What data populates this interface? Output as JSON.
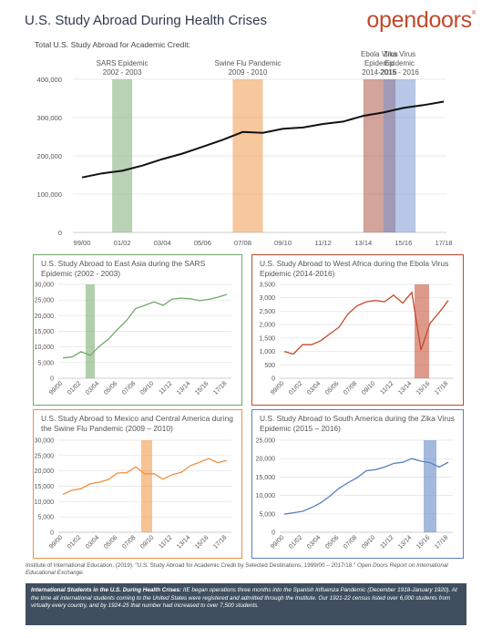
{
  "page": {
    "title": "U.S. Study Abroad During Health Crises",
    "logo": "opendoors",
    "logo_mark": "®",
    "subtitle": "Total U.S. Study Abroad for Academic Credit:"
  },
  "colors": {
    "sars": "#72a86a",
    "ebola": "#c2492b",
    "swine": "#f08f3d",
    "zika": "#5a7fc2",
    "main_line": "#111111"
  },
  "chart_data": [
    {
      "type": "line",
      "id": "main",
      "title": "",
      "xlabel": "",
      "ylabel": "",
      "ylim": [
        0,
        400000
      ],
      "yticks": [
        "0",
        "100,000",
        "200,000",
        "300,000",
        "400,000"
      ],
      "x_tick_labels": [
        "99/00",
        "01/02",
        "03/04",
        "05/06",
        "07/08",
        "09/10",
        "11/12",
        "13/14",
        "15/16",
        "17/18"
      ],
      "x": [
        "99/00",
        "00/01",
        "01/02",
        "02/03",
        "03/04",
        "04/05",
        "05/06",
        "06/07",
        "07/08",
        "08/09",
        "09/10",
        "10/11",
        "11/12",
        "12/13",
        "13/14",
        "14/15",
        "15/16",
        "16/17",
        "17/18"
      ],
      "values": [
        143590,
        154168,
        160920,
        174629,
        191321,
        205983,
        223534,
        241791,
        262416,
        260327,
        270604,
        273996,
        283332,
        289408,
        304467,
        313415,
        325339,
        332727,
        341751
      ],
      "grid": true,
      "bands": [
        {
          "label1": "SARS Epidemic",
          "label2": "2002 - 2003",
          "start": 1.5,
          "end": 2.5,
          "color": "#72a86a"
        },
        {
          "label1": "Swine Flu Pandemic",
          "label2": "2009 - 2010",
          "start": 7.5,
          "end": 9.0,
          "color": "#f08f3d"
        },
        {
          "label0": "Ebola Virus",
          "label1": "Epidemic",
          "label2": "2014-2016",
          "start": 14.0,
          "end": 15.6,
          "color": "#a54a3a"
        },
        {
          "label0": "Zika Virus",
          "label1": "Epidemic",
          "label2": "2015 - 2016",
          "start": 15.0,
          "end": 16.6,
          "color": "#6f8fd1"
        }
      ]
    },
    {
      "type": "line",
      "id": "sars",
      "title": "U.S. Study Abroad to East Asia during the SARS Epidemic (2002 - 2003)",
      "ylim": [
        0,
        30000
      ],
      "yticks": [
        "0",
        "5,000",
        "10,000",
        "15,000",
        "20,000",
        "25,000",
        "30,000"
      ],
      "x": [
        "99/00",
        "00/01",
        "01/02",
        "02/03",
        "03/04",
        "04/05",
        "05/06",
        "06/07",
        "07/08",
        "08/09",
        "09/10",
        "10/11",
        "11/12",
        "12/13",
        "13/14",
        "14/15",
        "15/16",
        "16/17",
        "17/18"
      ],
      "x_tick_labels": [
        "99/00",
        "01/02",
        "03/04",
        "05/06",
        "07/08",
        "09/10",
        "11/12",
        "13/14",
        "15/16",
        "17/18"
      ],
      "values": [
        6500,
        6800,
        8500,
        7300,
        10200,
        12500,
        15600,
        18500,
        22300,
        23300,
        24400,
        23300,
        25300,
        25600,
        25400,
        24800,
        25200,
        25900,
        26800
      ],
      "band": {
        "start": 2.5,
        "end": 3.5
      },
      "color": "#72a86a"
    },
    {
      "type": "line",
      "id": "ebola",
      "title": "U.S. Study Abroad to West Africa during the Ebola Virus Epidemic (2014-2016)",
      "ylim": [
        0,
        3500
      ],
      "yticks": [
        "0",
        "500",
        "1,000",
        "1,500",
        "2,000",
        "2,500",
        "3,000",
        "3,500"
      ],
      "x": [
        "99/00",
        "00/01",
        "01/02",
        "02/03",
        "03/04",
        "04/05",
        "05/06",
        "06/07",
        "07/08",
        "08/09",
        "09/10",
        "10/11",
        "11/12",
        "12/13",
        "13/14",
        "14/15",
        "15/16",
        "16/17",
        "17/18"
      ],
      "x_tick_labels": [
        "99/00",
        "01/02",
        "03/04",
        "05/06",
        "07/08",
        "09/10",
        "11/12",
        "13/14",
        "15/16",
        "17/18"
      ],
      "values": [
        1000,
        900,
        1250,
        1250,
        1400,
        1650,
        1900,
        2400,
        2700,
        2850,
        2900,
        2850,
        3100,
        2800,
        3200,
        1050,
        2050,
        2450,
        2900
      ],
      "band": {
        "start": 14.3,
        "end": 15.9
      },
      "color": "#c2492b"
    },
    {
      "type": "line",
      "id": "swine",
      "title": "U.S. Study Abroad to Mexico and Central America during the Swine Flu Pandemic (2009 – 2010)",
      "ylim": [
        0,
        30000
      ],
      "yticks": [
        "0",
        "5,000",
        "10,000",
        "15,000",
        "20,000",
        "25,000",
        "30,000"
      ],
      "x": [
        "99/00",
        "00/01",
        "01/02",
        "02/03",
        "03/04",
        "04/05",
        "05/06",
        "06/07",
        "07/08",
        "08/09",
        "09/10",
        "10/11",
        "11/12",
        "12/13",
        "13/14",
        "14/15",
        "15/16",
        "16/17",
        "17/18"
      ],
      "x_tick_labels": [
        "99/00",
        "01/02",
        "03/04",
        "05/06",
        "07/08",
        "09/10",
        "11/12",
        "13/14",
        "15/16",
        "17/18"
      ],
      "values": [
        12300,
        13700,
        14200,
        15800,
        16300,
        17200,
        19300,
        19400,
        21300,
        19000,
        19100,
        17300,
        18800,
        19500,
        21700,
        22800,
        24000,
        22700,
        23400
      ],
      "band": {
        "start": 8.6,
        "end": 9.8
      },
      "color": "#f08f3d"
    },
    {
      "type": "line",
      "id": "zika",
      "title": "U.S. Study Abroad to South America during the Zika Virus Epidemic (2015 – 2016)",
      "ylim": [
        0,
        25000
      ],
      "yticks": [
        "0",
        "5,000",
        "10,000",
        "15,000",
        "20,000",
        "25,000"
      ],
      "x": [
        "99/00",
        "00/01",
        "01/02",
        "02/03",
        "03/04",
        "04/05",
        "05/06",
        "06/07",
        "07/08",
        "08/09",
        "09/10",
        "10/11",
        "11/12",
        "12/13",
        "13/14",
        "14/15",
        "15/16",
        "16/17",
        "17/18"
      ],
      "x_tick_labels": [
        "99/00",
        "01/02",
        "03/04",
        "05/06",
        "07/08",
        "09/10",
        "11/12",
        "13/14",
        "15/16",
        "17/18"
      ],
      "values": [
        4900,
        5300,
        5700,
        6700,
        8000,
        9800,
        11900,
        13500,
        14800,
        16700,
        17000,
        17700,
        18700,
        19000,
        20000,
        19300,
        18900,
        17700,
        19000
      ],
      "band": {
        "start": 15.3,
        "end": 16.7
      },
      "color": "#5a7fc2"
    }
  ],
  "source": {
    "text": "Institute of International Education. (2019). \"U.S. Study Abroad for Academic Credit by Selected Destinations, 1999/00 – 2017/18.\"",
    "italic": "Open Doors Report on International Educational Exchange."
  },
  "footer": {
    "bold": "International Students in the U.S. During Health Crises:",
    "text": " IIE began operations three months into the Spanish Influenza Pandemic (December 1918-January 1920). At the time all international students coming to the United States were registered and admitted through the Institute. Our 1921-22 census listed over 6,000 students from virtually every country, and by 1924-25 that number had increased to over 7,500 students."
  }
}
